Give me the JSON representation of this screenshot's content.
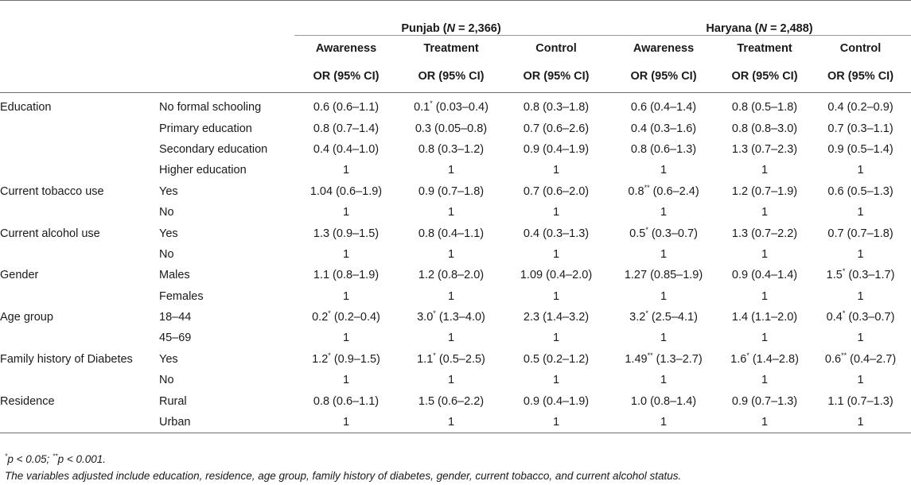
{
  "groups": [
    {
      "label": "Punjab (N = 2,366)",
      "name": "Punjab",
      "n_label": "N",
      "n_value": "2,366"
    },
    {
      "label": "Haryana (N = 2,488)",
      "name": "Haryana",
      "n_label": "N",
      "n_value": "2,488"
    }
  ],
  "subheaders": [
    "Awareness",
    "Treatment",
    "Control",
    "Awareness",
    "Treatment",
    "Control"
  ],
  "ci_label": "OR (95% CI)",
  "rows": [
    {
      "variable": "Education",
      "category": "No formal schooling",
      "values": [
        "0.6 (0.6–1.1)",
        "0.1* (0.03–0.4)",
        "0.8 (0.3–1.8)",
        "0.6 (0.4–1.4)",
        "0.8 (0.5–1.8)",
        "0.4 (0.2–0.9)"
      ]
    },
    {
      "variable": "",
      "category": "Primary education",
      "values": [
        "0.8 (0.7–1.4)",
        "0.3 (0.05–0.8)",
        "0.7 (0.6–2.6)",
        "0.4 (0.3–1.6)",
        "0.8 (0.8–3.0)",
        "0.7 (0.3–1.1)"
      ]
    },
    {
      "variable": "",
      "category": "Secondary education",
      "values": [
        "0.4 (0.4–1.0)",
        "0.8 (0.3–1.2)",
        "0.9 (0.4–1.9)",
        "0.8 (0.6–1.3)",
        "1.3 (0.7–2.3)",
        "0.9 (0.5–1.4)"
      ]
    },
    {
      "variable": "",
      "category": "Higher education",
      "values": [
        "1",
        "1",
        "1",
        "1",
        "1",
        "1"
      ]
    },
    {
      "variable": "Current tobacco use",
      "category": "Yes",
      "values": [
        "1.04 (0.6–1.9)",
        "0.9 (0.7–1.8)",
        "0.7 (0.6–2.0)",
        "0.8** (0.6–2.4)",
        "1.2 (0.7–1.9)",
        "0.6 (0.5–1.3)"
      ]
    },
    {
      "variable": "",
      "category": "No",
      "values": [
        "1",
        "1",
        "1",
        "1",
        "1",
        "1"
      ]
    },
    {
      "variable": "Current alcohol use",
      "category": "Yes",
      "values": [
        "1.3 (0.9–1.5)",
        "0.8 (0.4–1.1)",
        "0.4 (0.3–1.3)",
        "0.5* (0.3–0.7)",
        "1.3 (0.7–2.2)",
        "0.7 (0.7–1.8)"
      ]
    },
    {
      "variable": "",
      "category": "No",
      "values": [
        "1",
        "1",
        "1",
        "1",
        "1",
        "1"
      ]
    },
    {
      "variable": "Gender",
      "category": "Males",
      "values": [
        "1.1 (0.8–1.9)",
        "1.2 (0.8–2.0)",
        "1.09 (0.4–2.0)",
        "1.27 (0.85–1.9)",
        "0.9 (0.4–1.4)",
        "1.5* (0.3–1.7)"
      ]
    },
    {
      "variable": "",
      "category": "Females",
      "values": [
        "1",
        "1",
        "1",
        "1",
        "1",
        "1"
      ]
    },
    {
      "variable": "Age group",
      "category": "18–44",
      "values": [
        "0.2* (0.2–0.4)",
        "3.0* (1.3–4.0)",
        "2.3 (1.4–3.2)",
        "3.2* (2.5–4.1)",
        "1.4 (1.1–2.0)",
        "0.4* (0.3–0.7)"
      ]
    },
    {
      "variable": "",
      "category": "45–69",
      "values": [
        "1",
        "1",
        "1",
        "1",
        "1",
        "1"
      ]
    },
    {
      "variable": "Family history of Diabetes",
      "category": "Yes",
      "values": [
        "1.2* (0.9–1.5)",
        "1.1* (0.5–2.5)",
        "0.5 (0.2–1.2)",
        "1.49** (1.3–2.7)",
        "1.6* (1.4–2.8)",
        "0.6** (0.4–2.7)"
      ]
    },
    {
      "variable": "",
      "category": "No",
      "values": [
        "1",
        "1",
        "1",
        "1",
        "1",
        "1"
      ]
    },
    {
      "variable": "Residence",
      "category": "Rural",
      "values": [
        "0.8 (0.6–1.1)",
        "1.5 (0.6–2.2)",
        "0.9 (0.4–1.9)",
        "1.0 (0.8–1.4)",
        "0.9 (0.7–1.3)",
        "1.1 (0.7–1.3)"
      ]
    },
    {
      "variable": "",
      "category": "Urban",
      "values": [
        "1",
        "1",
        "1",
        "1",
        "1",
        "1"
      ]
    }
  ],
  "notes": {
    "significance": "*p < 0.05; **p < 0.001.",
    "adjustment": "The variables adjusted include education, residence, age group, family history of diabetes, gender, current tobacco, and current alcohol status."
  }
}
